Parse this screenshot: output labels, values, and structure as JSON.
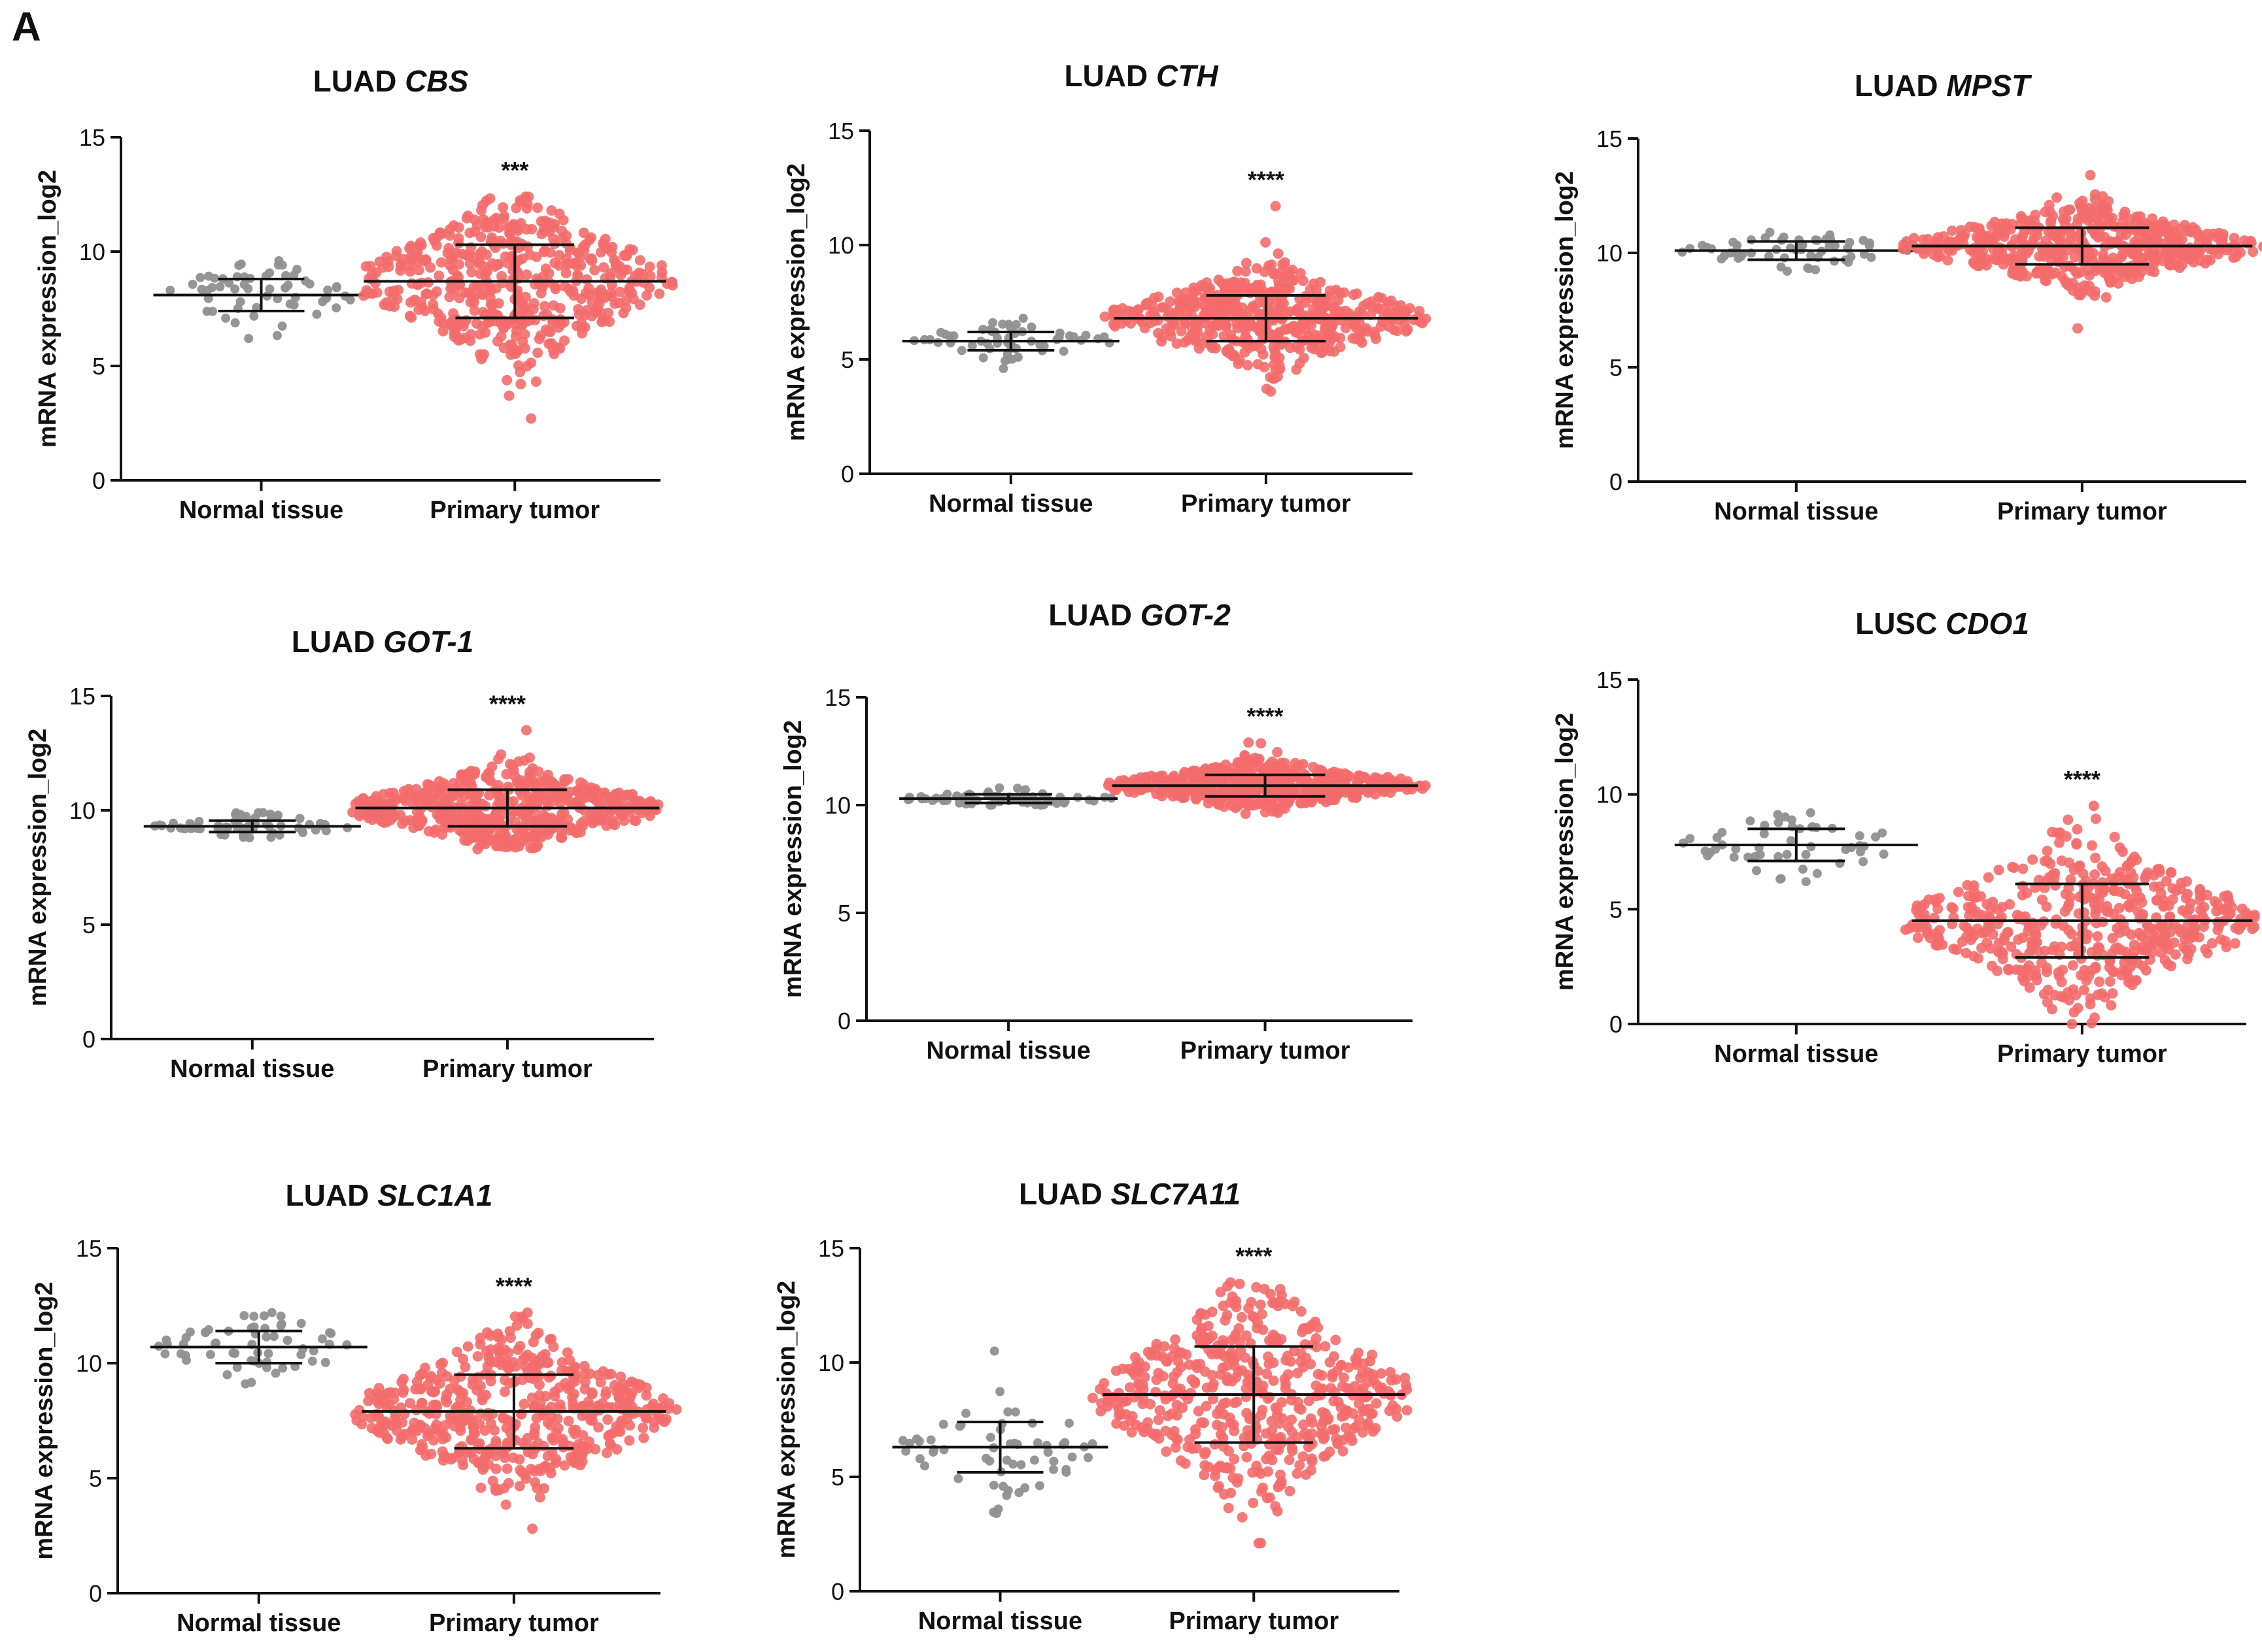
{
  "figure": {
    "panel_label": "A",
    "colors": {
      "normal": "#909090",
      "tumor": "#f46b6b",
      "axis": "#111111",
      "errorbar": "#111111"
    }
  },
  "chart_data": [
    {
      "type": "scatter",
      "title_prefix": "LUAD",
      "title_gene": "CBS",
      "ylabel": "mRNA expression_log2",
      "ylim": [
        0,
        15
      ],
      "yticks": [
        0,
        5,
        10,
        15
      ],
      "categories": [
        "Normal tissue",
        "Primary tumor"
      ],
      "significance": "***",
      "series": [
        {
          "name": "Normal tissue",
          "mean": 8.1,
          "sd": 0.7,
          "min": 6.2,
          "max": 9.6,
          "n": 59
        },
        {
          "name": "Primary tumor",
          "mean": 8.7,
          "sd": 1.6,
          "min": 2.7,
          "max": 12.4,
          "n": 513
        }
      ]
    },
    {
      "type": "scatter",
      "title_prefix": "LUAD",
      "title_gene": "CTH",
      "ylabel": "mRNA expression_log2",
      "ylim": [
        0,
        15
      ],
      "yticks": [
        0,
        5,
        10,
        15
      ],
      "categories": [
        "Normal tissue",
        "Primary tumor"
      ],
      "significance": "****",
      "series": [
        {
          "name": "Normal tissue",
          "mean": 5.8,
          "sd": 0.4,
          "min": 4.6,
          "max": 6.8,
          "n": 59
        },
        {
          "name": "Primary tumor",
          "mean": 6.8,
          "sd": 1.0,
          "min": 3.6,
          "max": 11.7,
          "n": 513
        }
      ]
    },
    {
      "type": "scatter",
      "title_prefix": "LUAD",
      "title_gene": "MPST",
      "ylabel": "mRNA expression_log2",
      "ylim": [
        0,
        15
      ],
      "yticks": [
        0,
        5,
        10,
        15
      ],
      "categories": [
        "Normal tissue",
        "Primary tumor"
      ],
      "significance": "",
      "series": [
        {
          "name": "Normal tissue",
          "mean": 10.1,
          "sd": 0.4,
          "min": 9.2,
          "max": 10.9,
          "n": 59
        },
        {
          "name": "Primary tumor",
          "mean": 10.3,
          "sd": 0.8,
          "min": 6.7,
          "max": 13.4,
          "n": 513
        }
      ]
    },
    {
      "type": "scatter",
      "title_prefix": "LUAD",
      "title_gene": "GOT-1",
      "ylabel": "mRNA expression_log2",
      "ylim": [
        0,
        15
      ],
      "yticks": [
        0,
        5,
        10,
        15
      ],
      "categories": [
        "Normal tissue",
        "Primary tumor"
      ],
      "significance": "****",
      "series": [
        {
          "name": "Normal tissue",
          "mean": 9.3,
          "sd": 0.25,
          "min": 8.8,
          "max": 9.9,
          "n": 59
        },
        {
          "name": "Primary tumor",
          "mean": 10.1,
          "sd": 0.8,
          "min": 8.3,
          "max": 13.5,
          "n": 513
        }
      ]
    },
    {
      "type": "scatter",
      "title_prefix": "LUAD",
      "title_gene": "GOT-2",
      "ylabel": "mRNA expression_log2",
      "ylim": [
        0,
        15
      ],
      "yticks": [
        0,
        5,
        10,
        15
      ],
      "categories": [
        "Normal tissue",
        "Primary tumor"
      ],
      "significance": "****",
      "series": [
        {
          "name": "Normal tissue",
          "mean": 10.3,
          "sd": 0.2,
          "min": 10.0,
          "max": 10.8,
          "n": 59
        },
        {
          "name": "Primary tumor",
          "mean": 10.9,
          "sd": 0.5,
          "min": 9.6,
          "max": 12.9,
          "n": 513
        }
      ]
    },
    {
      "type": "scatter",
      "title_prefix": "LUSC",
      "title_gene": "CDO1",
      "ylabel": "mRNA expression_log2",
      "ylim": [
        0,
        15
      ],
      "yticks": [
        0,
        5,
        10,
        15
      ],
      "categories": [
        "Normal tissue",
        "Primary tumor"
      ],
      "significance": "****",
      "series": [
        {
          "name": "Normal tissue",
          "mean": 7.8,
          "sd": 0.7,
          "min": 6.2,
          "max": 9.2,
          "n": 51
        },
        {
          "name": "Primary tumor",
          "mean": 4.5,
          "sd": 1.6,
          "min": 0.0,
          "max": 9.5,
          "n": 502
        }
      ]
    },
    {
      "type": "scatter",
      "title_prefix": "LUAD",
      "title_gene": "SLC1A1",
      "ylabel": "mRNA expression_log2",
      "ylim": [
        0,
        15
      ],
      "yticks": [
        0,
        5,
        10,
        15
      ],
      "categories": [
        "Normal tissue",
        "Primary tumor"
      ],
      "significance": "****",
      "series": [
        {
          "name": "Normal tissue",
          "mean": 10.7,
          "sd": 0.7,
          "min": 9.1,
          "max": 12.2,
          "n": 59
        },
        {
          "name": "Primary tumor",
          "mean": 7.9,
          "sd": 1.6,
          "min": 2.8,
          "max": 12.2,
          "n": 513
        }
      ]
    },
    {
      "type": "scatter",
      "title_prefix": "LUAD",
      "title_gene": "SLC7A11",
      "ylabel": "mRNA expression_log2",
      "ylim": [
        0,
        15
      ],
      "yticks": [
        0,
        5,
        10,
        15
      ],
      "categories": [
        "Normal tissue",
        "Primary tumor"
      ],
      "significance": "****",
      "series": [
        {
          "name": "Normal tissue",
          "mean": 6.3,
          "sd": 1.1,
          "min": 3.4,
          "max": 10.5,
          "n": 59
        },
        {
          "name": "Primary tumor",
          "mean": 8.6,
          "sd": 2.1,
          "min": 2.1,
          "max": 13.5,
          "n": 513
        }
      ]
    }
  ]
}
